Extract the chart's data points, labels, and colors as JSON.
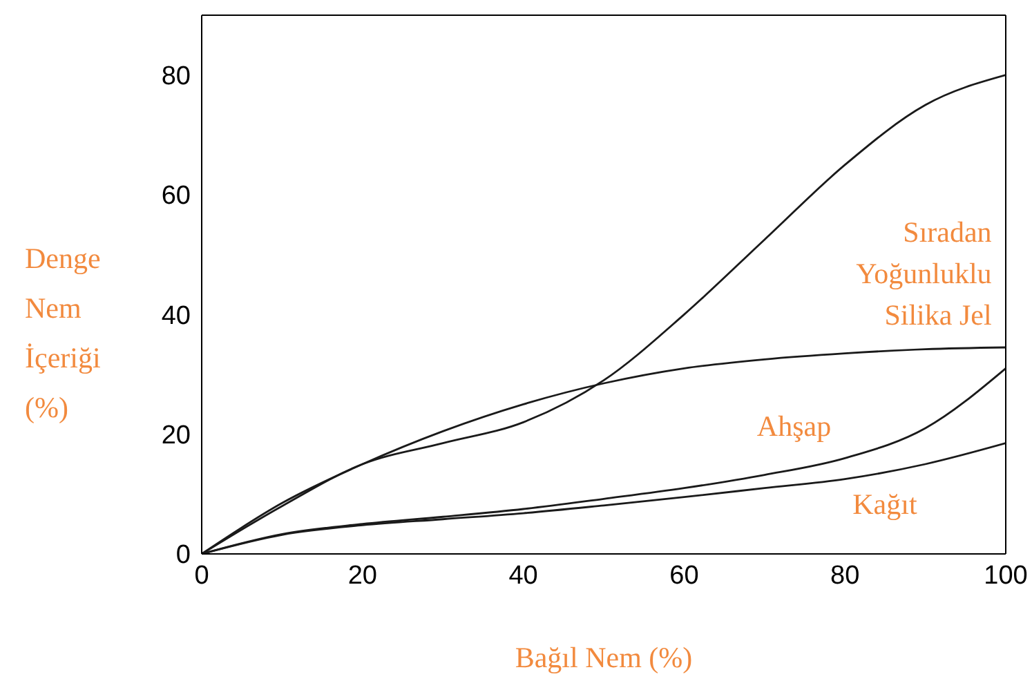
{
  "chart_data": {
    "type": "line",
    "xlabel": "Bağıl Nem (%)",
    "ylabel": "Denge Nem İçeriği (%)",
    "x": [
      0,
      10,
      20,
      30,
      40,
      50,
      60,
      70,
      80,
      90,
      100
    ],
    "series": [
      {
        "color": "#1a1a1a",
        "values": [
          0,
          8,
          15,
          18.5,
          22,
          29,
          40,
          52.5,
          65,
          75,
          80
        ]
      },
      {
        "name": "Sıradan Yoğunluklu Silika Jel",
        "color": "#1a1a1a",
        "values": [
          0,
          8.5,
          15,
          20.5,
          25,
          28.5,
          31,
          32.5,
          33.5,
          34.2,
          34.5
        ]
      },
      {
        "name": "Ahşap",
        "color": "#1a1a1a",
        "values": [
          0,
          3.3,
          5,
          6.2,
          7.5,
          9.2,
          11,
          13.2,
          16,
          21,
          31
        ]
      },
      {
        "name": "Kağıt",
        "color": "#1a1a1a",
        "values": [
          0,
          3.2,
          4.8,
          5.8,
          6.8,
          8.1,
          9.5,
          11,
          12.5,
          15,
          18.5
        ]
      }
    ],
    "xlim": [
      0,
      100
    ],
    "xticks": [
      0,
      20,
      40,
      60,
      80,
      100
    ],
    "ylim": [
      0,
      90
    ],
    "yticks": [
      0,
      20,
      40,
      60,
      80
    ],
    "grid": false,
    "legend": false,
    "marker": "none",
    "line_style": "solid"
  }
}
